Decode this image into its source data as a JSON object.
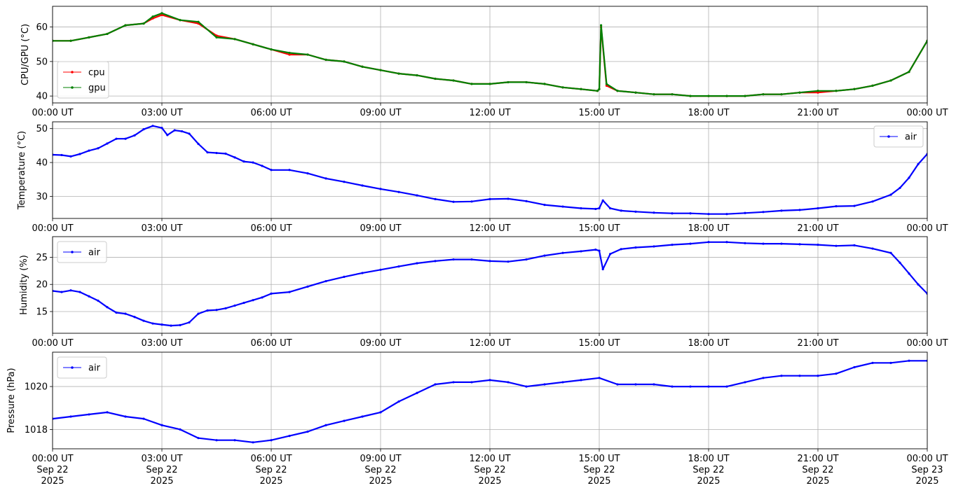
{
  "chart_data": [
    {
      "type": "line",
      "ylabel": "CPU/GPU (°C)",
      "xlabel": "",
      "xlim": [
        0,
        24
      ],
      "ylim": [
        38,
        66
      ],
      "yticks": [
        40,
        50,
        60
      ],
      "xtick_labels": [
        "00:00 UT",
        "03:00 UT",
        "06:00 UT",
        "09:00 UT",
        "12:00 UT",
        "15:00 UT",
        "18:00 UT",
        "21:00 UT",
        "00:00 UT"
      ],
      "grid": true,
      "legend": "lower-left",
      "series": [
        {
          "name": "cpu",
          "color": "#ff0000",
          "x": [
            0,
            0.5,
            1,
            1.5,
            2,
            2.5,
            2.75,
            3,
            3.5,
            4,
            4.5,
            5,
            5.5,
            6,
            6.5,
            7,
            7.5,
            8,
            8.5,
            9,
            9.5,
            10,
            10.5,
            11,
            11.5,
            12,
            12.5,
            13,
            13.5,
            14,
            14.5,
            14.95,
            15.0,
            15.05,
            15.2,
            15.5,
            16,
            16.5,
            17,
            17.5,
            18,
            18.5,
            19,
            19.5,
            20,
            20.5,
            21,
            21.5,
            22,
            22.5,
            23,
            23.5,
            24
          ],
          "y": [
            56,
            56,
            57,
            58,
            60.5,
            61,
            62.5,
            63.5,
            62,
            61,
            57.5,
            56.5,
            55,
            53.5,
            52,
            52,
            50.5,
            50,
            48.5,
            47.5,
            46.5,
            46,
            45,
            44.5,
            43.5,
            43.5,
            44,
            44,
            43.5,
            42.5,
            42,
            41.5,
            42,
            60,
            43,
            41.5,
            41,
            40.5,
            40.5,
            40,
            40,
            40,
            40,
            40.5,
            40.5,
            41,
            41,
            41.5,
            42,
            43,
            44.5,
            47,
            56
          ]
        },
        {
          "name": "gpu",
          "color": "#008000",
          "x": [
            0,
            0.5,
            1,
            1.5,
            2,
            2.5,
            2.75,
            3,
            3.5,
            4,
            4.5,
            5,
            5.5,
            6,
            6.5,
            7,
            7.5,
            8,
            8.5,
            9,
            9.5,
            10,
            10.5,
            11,
            11.5,
            12,
            12.5,
            13,
            13.5,
            14,
            14.5,
            14.95,
            15.0,
            15.05,
            15.2,
            15.5,
            16,
            16.5,
            17,
            17.5,
            18,
            18.5,
            19,
            19.5,
            20,
            20.5,
            21,
            21.5,
            22,
            22.5,
            23,
            23.5,
            24
          ],
          "y": [
            56,
            56,
            57,
            58,
            60.5,
            61,
            63,
            64,
            62,
            61.5,
            57,
            56.5,
            55,
            53.5,
            52.5,
            52,
            50.5,
            50,
            48.5,
            47.5,
            46.5,
            46,
            45,
            44.5,
            43.5,
            43.5,
            44,
            44,
            43.5,
            42.5,
            42,
            41.5,
            42,
            60.5,
            43.5,
            41.5,
            41,
            40.5,
            40.5,
            40,
            40,
            40,
            40,
            40.5,
            40.5,
            41,
            41.5,
            41.5,
            42,
            43,
            44.5,
            47,
            56
          ]
        }
      ]
    },
    {
      "type": "line",
      "ylabel": "Temperature (°C)",
      "xlabel": "",
      "xlim": [
        0,
        24
      ],
      "ylim": [
        23.5,
        52
      ],
      "yticks": [
        30,
        40,
        50
      ],
      "xtick_labels": [
        "00:00 UT",
        "03:00 UT",
        "06:00 UT",
        "09:00 UT",
        "12:00 UT",
        "15:00 UT",
        "18:00 UT",
        "21:00 UT",
        "00:00 UT"
      ],
      "grid": true,
      "legend": "upper-right",
      "series": [
        {
          "name": "air",
          "color": "#0000ff",
          "x": [
            0,
            0.25,
            0.5,
            0.75,
            1,
            1.25,
            1.5,
            1.75,
            2,
            2.25,
            2.5,
            2.75,
            3,
            3.15,
            3.35,
            3.55,
            3.75,
            4,
            4.25,
            4.5,
            4.75,
            5,
            5.25,
            5.5,
            5.75,
            6,
            6.5,
            7,
            7.5,
            8,
            8.5,
            9,
            9.5,
            10,
            10.5,
            11,
            11.5,
            12,
            12.5,
            13,
            13.5,
            14,
            14.5,
            14.9,
            15.0,
            15.1,
            15.3,
            15.6,
            16,
            16.5,
            17,
            17.5,
            18,
            18.5,
            19,
            19.5,
            20,
            20.5,
            21,
            21.5,
            22,
            22.5,
            23,
            23.25,
            23.5,
            23.75,
            24
          ],
          "y": [
            42.3,
            42.2,
            41.8,
            42.5,
            43.5,
            44.2,
            45.6,
            47,
            47,
            48,
            49.8,
            50.8,
            50.2,
            48.1,
            49.5,
            49.2,
            48.5,
            45.5,
            43,
            42.8,
            42.6,
            41.5,
            40.3,
            40,
            39,
            37.8,
            37.8,
            36.8,
            35.3,
            34.3,
            33.2,
            32.2,
            31.3,
            30.3,
            29.2,
            28.4,
            28.5,
            29.2,
            29.3,
            28.6,
            27.5,
            27,
            26.5,
            26.3,
            26.5,
            28.8,
            26.5,
            25.8,
            25.5,
            25.2,
            25,
            25,
            24.8,
            24.8,
            25.1,
            25.4,
            25.8,
            26,
            26.5,
            27.1,
            27.2,
            28.5,
            30.5,
            32.5,
            35.5,
            39.5,
            42.5
          ]
        }
      ]
    },
    {
      "type": "line",
      "ylabel": "Humidity (%)",
      "xlabel": "",
      "xlim": [
        0,
        24
      ],
      "ylim": [
        11,
        28.8
      ],
      "yticks": [
        15,
        20,
        25
      ],
      "xtick_labels": [
        "00:00 UT",
        "03:00 UT",
        "06:00 UT",
        "09:00 UT",
        "12:00 UT",
        "15:00 UT",
        "18:00 UT",
        "21:00 UT",
        "00:00 UT"
      ],
      "grid": true,
      "legend": "upper-left",
      "series": [
        {
          "name": "air",
          "color": "#0000ff",
          "x": [
            0,
            0.25,
            0.5,
            0.75,
            1,
            1.25,
            1.5,
            1.75,
            2,
            2.25,
            2.5,
            2.75,
            3,
            3.25,
            3.5,
            3.75,
            4,
            4.25,
            4.5,
            4.75,
            5,
            5.25,
            5.5,
            5.75,
            6,
            6.5,
            7,
            7.5,
            8,
            8.5,
            9,
            9.5,
            10,
            10.5,
            11,
            11.5,
            12,
            12.5,
            13,
            13.5,
            14,
            14.5,
            14.9,
            15.0,
            15.1,
            15.3,
            15.6,
            16,
            16.5,
            17,
            17.5,
            18,
            18.5,
            19,
            19.5,
            20,
            20.5,
            21,
            21.5,
            22,
            22.5,
            23,
            23.25,
            23.5,
            23.75,
            24
          ],
          "y": [
            18.8,
            18.6,
            18.9,
            18.6,
            17.8,
            17,
            15.8,
            14.8,
            14.6,
            14,
            13.3,
            12.8,
            12.6,
            12.4,
            12.5,
            13,
            14.6,
            15.2,
            15.3,
            15.6,
            16.1,
            16.6,
            17.1,
            17.6,
            18.3,
            18.6,
            19.6,
            20.6,
            21.4,
            22.1,
            22.7,
            23.3,
            23.9,
            24.3,
            24.6,
            24.6,
            24.3,
            24.2,
            24.6,
            25.3,
            25.8,
            26.1,
            26.4,
            26.2,
            22.8,
            25.6,
            26.5,
            26.8,
            27,
            27.3,
            27.5,
            27.8,
            27.8,
            27.6,
            27.5,
            27.5,
            27.4,
            27.3,
            27.1,
            27.2,
            26.6,
            25.8,
            24,
            22,
            20,
            18.3
          ]
        }
      ]
    },
    {
      "type": "line",
      "ylabel": "Pressure (hPa)",
      "xlabel": "",
      "xlim": [
        0,
        24
      ],
      "ylim": [
        1017.1,
        1021.6
      ],
      "yticks": [
        1018,
        1020
      ],
      "xtick_labels": [
        "00:00 UT\nSep 22\n2025",
        "03:00 UT\nSep 22\n2025",
        "06:00 UT\nSep 22\n2025",
        "09:00 UT\nSep 22\n2025",
        "12:00 UT\nSep 22\n2025",
        "15:00 UT\nSep 22\n2025",
        "18:00 UT\nSep 22\n2025",
        "21:00 UT\nSep 22\n2025",
        "00:00 UT\nSep 23\n2025"
      ],
      "grid": true,
      "legend": "upper-left",
      "series": [
        {
          "name": "air",
          "color": "#0000ff",
          "x": [
            0,
            0.5,
            1,
            1.5,
            2,
            2.5,
            3,
            3.5,
            4,
            4.5,
            5,
            5.5,
            6,
            6.5,
            7,
            7.5,
            8,
            8.5,
            9,
            9.5,
            10,
            10.5,
            11,
            11.5,
            12,
            12.5,
            13,
            13.5,
            14,
            14.5,
            15,
            15.5,
            16,
            16.5,
            17,
            17.5,
            18,
            18.5,
            19,
            19.5,
            20,
            20.5,
            21,
            21.5,
            22,
            22.5,
            23,
            23.5,
            24
          ],
          "y": [
            1018.5,
            1018.6,
            1018.7,
            1018.8,
            1018.6,
            1018.5,
            1018.2,
            1018,
            1017.6,
            1017.5,
            1017.5,
            1017.4,
            1017.5,
            1017.7,
            1017.9,
            1018.2,
            1018.4,
            1018.6,
            1018.8,
            1019.3,
            1019.7,
            1020.1,
            1020.2,
            1020.2,
            1020.3,
            1020.2,
            1020,
            1020.1,
            1020.2,
            1020.3,
            1020.4,
            1020.1,
            1020.1,
            1020.1,
            1020,
            1020,
            1020,
            1020,
            1020.2,
            1020.4,
            1020.5,
            1020.5,
            1020.5,
            1020.6,
            1020.9,
            1021.1,
            1021.1,
            1021.2,
            1021.2
          ]
        }
      ]
    }
  ]
}
